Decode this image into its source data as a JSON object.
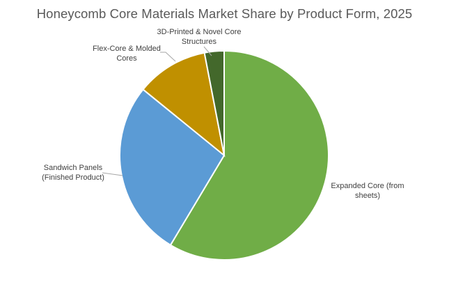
{
  "chart_data": {
    "type": "pie",
    "title": "Honeycomb Core Materials Market Share by Product Form, 2025",
    "legend": "none",
    "slices": [
      {
        "label": [
          "Expanded Core (from",
          "sheets)"
        ],
        "value": 58,
        "color": "#70AD47"
      },
      {
        "label": [
          "Sandwich Panels",
          "(Finished Product)"
        ],
        "value": 27,
        "color": "#5B9BD5"
      },
      {
        "label": [
          "Flex-Core & Molded",
          "Cores"
        ],
        "value": 11,
        "color": "#C09000"
      },
      {
        "label": [
          "3D-Printed & Novel Core",
          "Structures"
        ],
        "value": 3,
        "color": "#43682B"
      }
    ]
  }
}
